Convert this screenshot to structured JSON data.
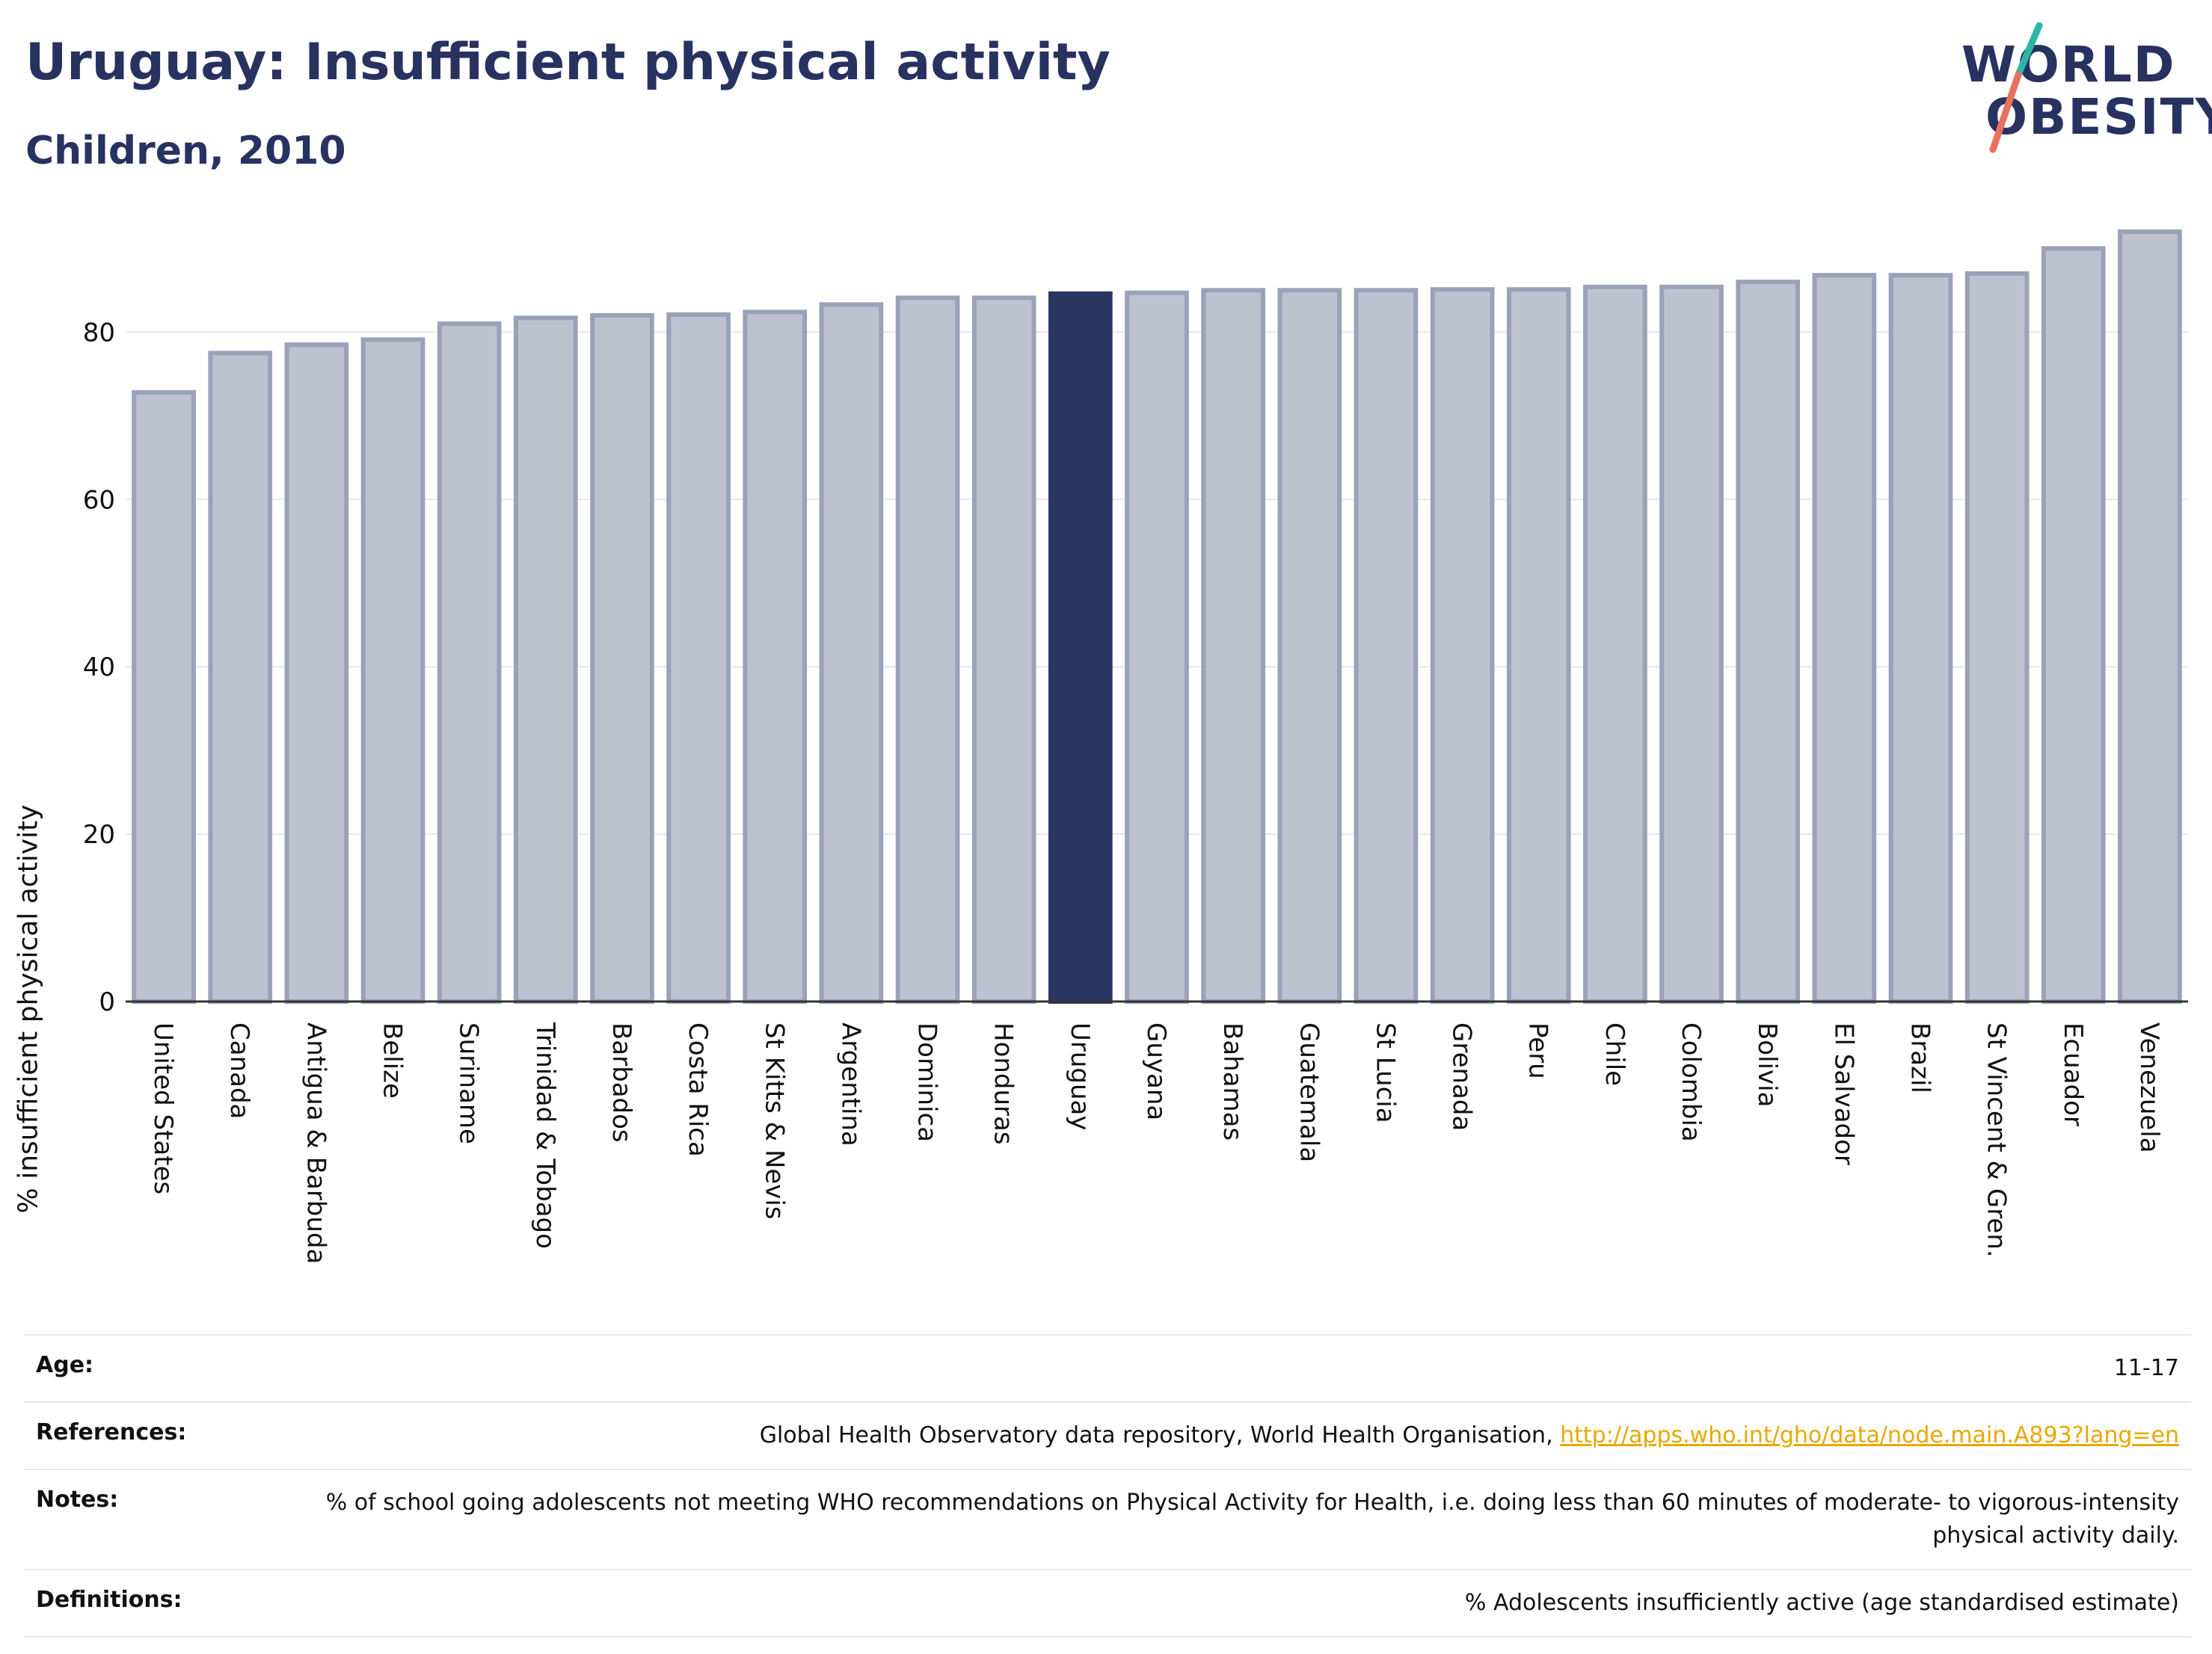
{
  "header": {
    "title": "Uruguay: Insufficient physical activity",
    "subtitle": "Children, 2010"
  },
  "logo": {
    "line1": "WORLD",
    "line2": "OBESITY"
  },
  "chart_data": {
    "type": "bar",
    "ylabel": "% insufficient physical activity",
    "ylim": [
      0,
      92
    ],
    "yticks": [
      0,
      20,
      40,
      60,
      80
    ],
    "grid": true,
    "highlight": "Uruguay",
    "colors": {
      "bar": "#bec1d0",
      "bar_edge": "#9ba1b8",
      "highlight": "#2b3562"
    },
    "categories": [
      "United States",
      "Canada",
      "Antigua & Barbuda",
      "Belize",
      "Suriname",
      "Trinidad & Tobago",
      "Barbados",
      "Costa Rica",
      "St Kitts & Nevis",
      "Argentina",
      "Dominica",
      "Honduras",
      "Uruguay",
      "Guyana",
      "Bahamas",
      "Guatemala",
      "St Lucia",
      "Grenada",
      "Peru",
      "Chile",
      "Colombia",
      "Bolivia",
      "El Salvador",
      "Brazil",
      "St Vincent & Gren.",
      "Ecuador",
      "Venezuela"
    ],
    "values": [
      72.8,
      77.5,
      78.5,
      79.1,
      81.0,
      81.7,
      82.0,
      82.1,
      82.4,
      83.3,
      84.1,
      84.1,
      84.6,
      84.7,
      85.0,
      85.0,
      85.0,
      85.1,
      85.1,
      85.4,
      85.4,
      86.0,
      86.8,
      86.8,
      87.0,
      90.0,
      92.0
    ]
  },
  "meta": [
    {
      "key": "Age:",
      "value": "11-17"
    },
    {
      "key": "References:",
      "value": "Global Health Observatory data repository, World Health Organisation, ",
      "link": "http://apps.who.int/gho/data/node.main.A893?lang=en"
    },
    {
      "key": "Notes:",
      "value": "% of school going adolescents not meeting WHO recommendations on Physical Activity for Health, i.e. doing less than 60 minutes of moderate- to vigorous-intensity physical activity daily."
    },
    {
      "key": "Definitions:",
      "value": "% Adolescents insufficiently active (age standardised estimate)"
    }
  ]
}
